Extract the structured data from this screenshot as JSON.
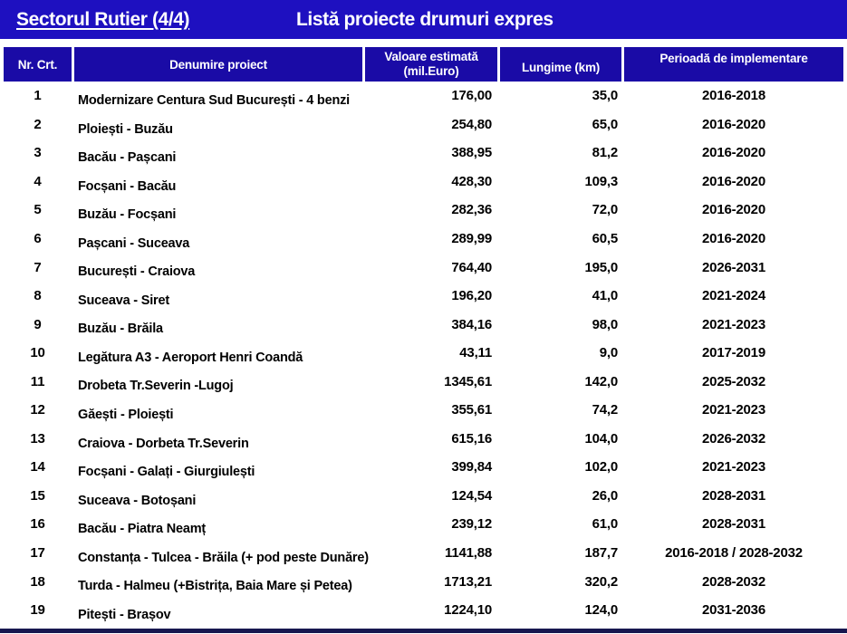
{
  "slide": {
    "section_title": "Sectorul Rutier (4/4)",
    "subtitle": "Listă proiecte drumuri expres"
  },
  "colors": {
    "top_bar": "#1e10c0",
    "header_cell": "#1a0ba6",
    "bottom_bar": "#17174f",
    "header_text": "#ffffff",
    "body_text": "#000000"
  },
  "table": {
    "headers": {
      "nr": "Nr. Crt.",
      "name": "Denumire proiect",
      "value_line1": "Valoare estimată",
      "value_line2": "(mil.Euro)",
      "length": "Lungime (km)",
      "period": "Perioadă de implementare"
    },
    "rows": [
      {
        "nr": "1",
        "name": "Modernizare Centura Sud București - 4 benzi",
        "value": "176,00",
        "length": "35,0",
        "period": "2016-2018"
      },
      {
        "nr": "2",
        "name": "Ploiești - Buzău",
        "value": "254,80",
        "length": "65,0",
        "period": "2016-2020"
      },
      {
        "nr": "3",
        "name": "Bacău - Pașcani",
        "value": "388,95",
        "length": "81,2",
        "period": "2016-2020"
      },
      {
        "nr": "4",
        "name": "Focșani - Bacău",
        "value": "428,30",
        "length": "109,3",
        "period": "2016-2020"
      },
      {
        "nr": "5",
        "name": "Buzău - Focșani",
        "value": "282,36",
        "length": "72,0",
        "period": "2016-2020"
      },
      {
        "nr": "6",
        "name": "Pașcani - Suceava",
        "value": "289,99",
        "length": "60,5",
        "period": "2016-2020"
      },
      {
        "nr": "7",
        "name": "București - Craiova",
        "value": "764,40",
        "length": "195,0",
        "period": "2026-2031"
      },
      {
        "nr": "8",
        "name": "Suceava - Siret",
        "value": "196,20",
        "length": "41,0",
        "period": "2021-2024"
      },
      {
        "nr": "9",
        "name": "Buzău - Brăila",
        "value": "384,16",
        "length": "98,0",
        "period": "2021-2023"
      },
      {
        "nr": "10",
        "name": "Legătura A3 - Aeroport Henri Coandă",
        "value": "43,11",
        "length": "9,0",
        "period": "2017-2019"
      },
      {
        "nr": "11",
        "name": "Drobeta Tr.Severin -Lugoj",
        "value": "1345,61",
        "length": "142,0",
        "period": "2025-2032"
      },
      {
        "nr": "12",
        "name": "Găești - Ploiești",
        "value": "355,61",
        "length": "74,2",
        "period": "2021-2023"
      },
      {
        "nr": "13",
        "name": "Craiova - Dorbeta Tr.Severin",
        "value": "615,16",
        "length": "104,0",
        "period": "2026-2032"
      },
      {
        "nr": "14",
        "name": "Focșani - Galați - Giurgiulești",
        "value": "399,84",
        "length": "102,0",
        "period": "2021-2023"
      },
      {
        "nr": "15",
        "name": "Suceava - Botoșani",
        "value": "124,54",
        "length": "26,0",
        "period": "2028-2031"
      },
      {
        "nr": "16",
        "name": "Bacău - Piatra Neamț",
        "value": "239,12",
        "length": "61,0",
        "period": "2028-2031"
      },
      {
        "nr": "17",
        "name": "Constanța - Tulcea - Brăila (+ pod peste Dunăre)",
        "value": "1141,88",
        "length": "187,7",
        "period": "2016-2018 / 2028-2032"
      },
      {
        "nr": "18",
        "name": "Turda - Halmeu (+Bistrița, Baia Mare și Petea)",
        "value": "1713,21",
        "length": "320,2",
        "period": "2028-2032"
      },
      {
        "nr": "19",
        "name": "Pitești - Brașov",
        "value": "1224,10",
        "length": "124,0",
        "period": "2031-2036"
      }
    ]
  }
}
